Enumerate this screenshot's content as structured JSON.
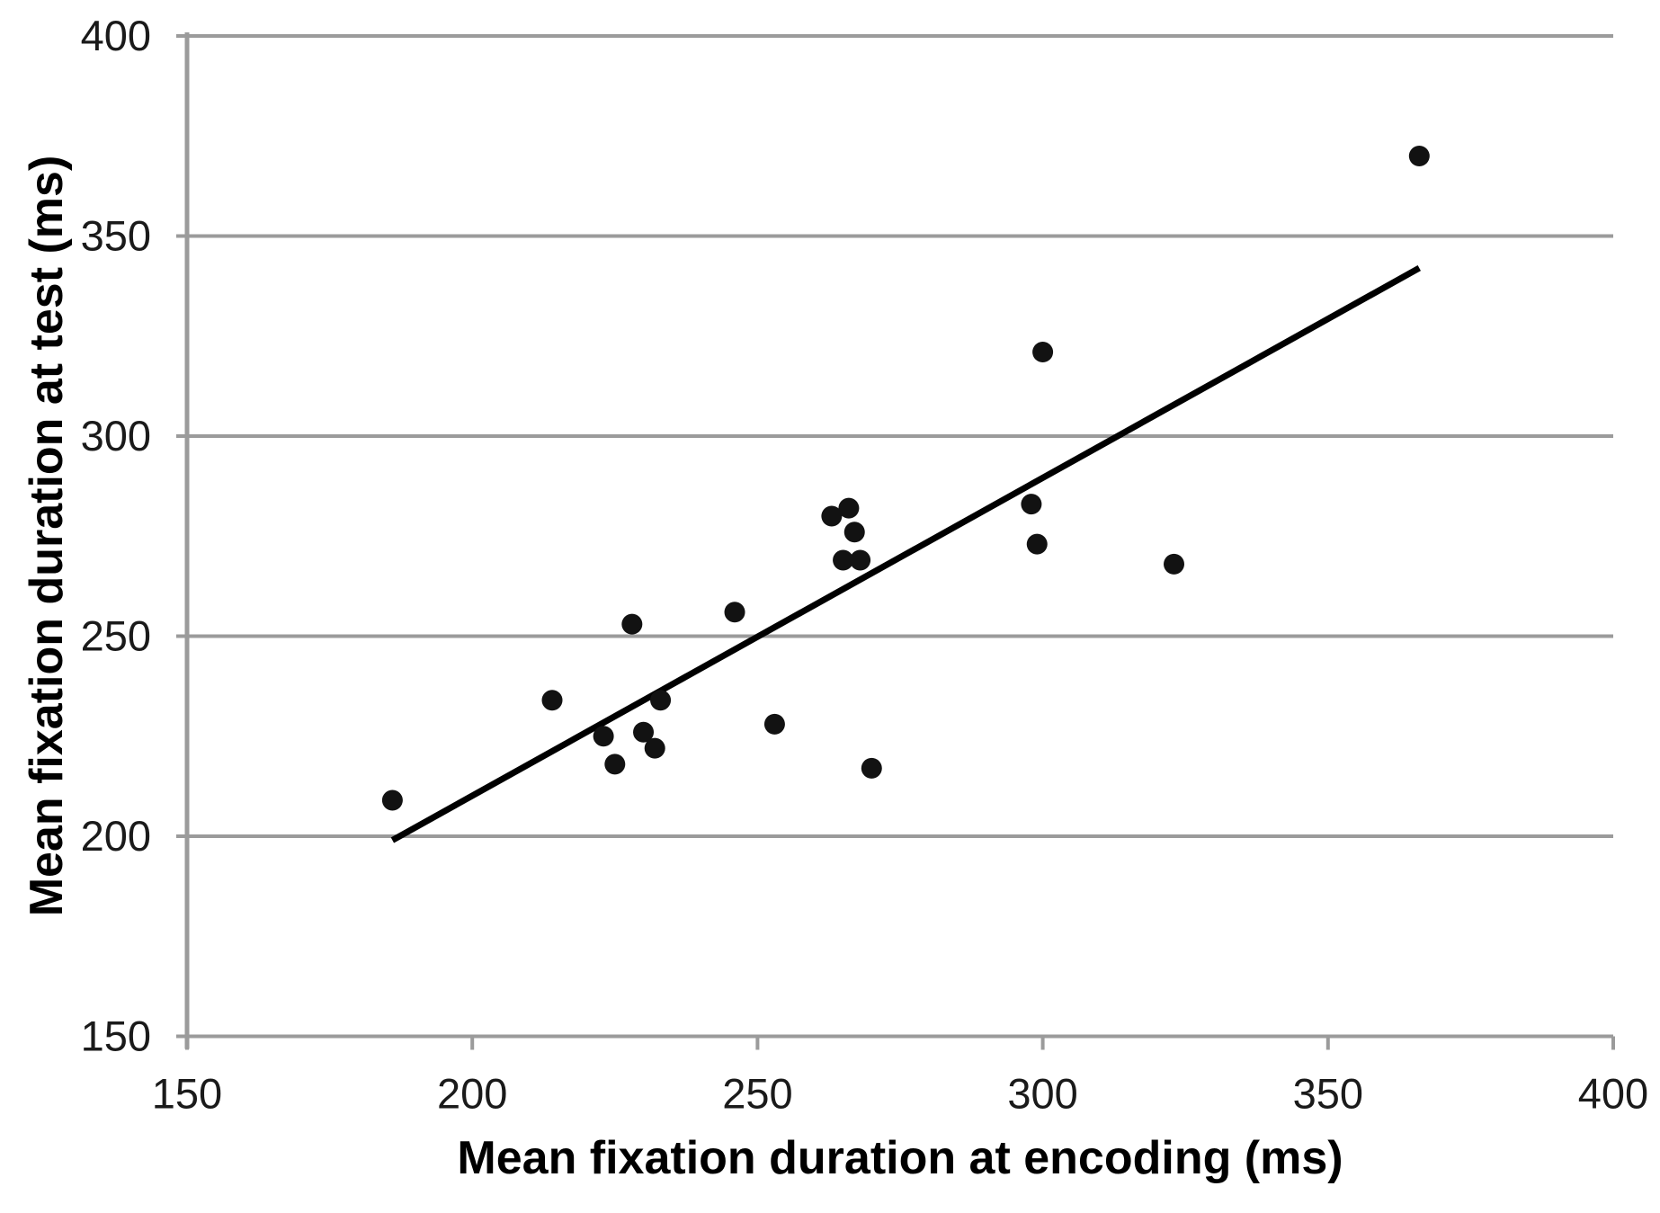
{
  "chart_data": {
    "type": "scatter",
    "title": "",
    "xlabel": "Mean fixation duration at encoding (ms)",
    "ylabel": "Mean fixation duration at test (ms)",
    "xlim": [
      150,
      400
    ],
    "ylim": [
      150,
      400
    ],
    "xticks": [
      150,
      200,
      250,
      300,
      350,
      400
    ],
    "yticks": [
      150,
      200,
      250,
      300,
      350,
      400
    ],
    "grid": "horizontal-only",
    "legend_position": "none",
    "points": [
      [
        186,
        209
      ],
      [
        214,
        234
      ],
      [
        223,
        225
      ],
      [
        225,
        218
      ],
      [
        228,
        253
      ],
      [
        230,
        226
      ],
      [
        232,
        222
      ],
      [
        233,
        234
      ],
      [
        246,
        256
      ],
      [
        253,
        228
      ],
      [
        263,
        280
      ],
      [
        265,
        269
      ],
      [
        266,
        282
      ],
      [
        267,
        276
      ],
      [
        268,
        269
      ],
      [
        270,
        217
      ],
      [
        298,
        283
      ],
      [
        299,
        273
      ],
      [
        300,
        321
      ],
      [
        323,
        268
      ],
      [
        366,
        370
      ]
    ],
    "trendline": {
      "type": "linear",
      "x1": 186,
      "y1": 199,
      "x2": 366,
      "y2": 342
    }
  },
  "style": {
    "axis_color": "#9b9b9b",
    "tick_label_color": "#1a1a1a",
    "point_color": "#121212",
    "trendline_color": "#000000",
    "background": "#ffffff"
  }
}
